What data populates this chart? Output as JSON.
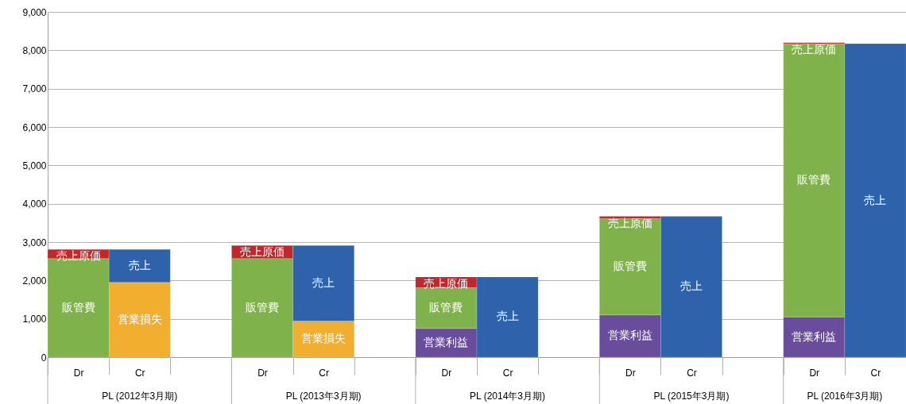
{
  "chart_data": {
    "type": "bar",
    "stacked": true,
    "categories": [
      "Dr",
      "Cr",
      null,
      "Dr",
      "Cr",
      null,
      "Dr",
      "Cr",
      null,
      "Dr",
      "Cr",
      null,
      "Dr",
      "Cr"
    ],
    "series": [
      {
        "name": "営業利益",
        "color": "#6a4c9c",
        "values": [
          null,
          null,
          null,
          null,
          null,
          null,
          750,
          null,
          null,
          1100,
          null,
          null,
          1050,
          null
        ]
      },
      {
        "name": "営業損失",
        "color": "#f2ae2e",
        "values": [
          null,
          1950,
          null,
          null,
          940,
          null,
          null,
          null,
          null,
          null,
          null,
          null,
          null,
          null
        ]
      },
      {
        "name": "販管費",
        "color": "#7fb24a",
        "values": [
          2570,
          null,
          null,
          2570,
          null,
          null,
          1060,
          null,
          null,
          2510,
          null,
          null,
          7120,
          null
        ]
      },
      {
        "name": "売上原価",
        "color": "#c0282e",
        "values": [
          240,
          null,
          null,
          340,
          null,
          null,
          280,
          null,
          null,
          60,
          null,
          null,
          30,
          null
        ]
      },
      {
        "name": "売上",
        "color": "#2e63ab",
        "values": [
          null,
          860,
          null,
          null,
          1970,
          null,
          null,
          2090,
          null,
          null,
          3670,
          null,
          null,
          8170
        ]
      }
    ],
    "ylim": [
      0,
      9000
    ],
    "yticks": [
      0,
      {
        "value": 1000,
        "label": "1,000"
      },
      {
        "value": 2000,
        "label": "2,000"
      },
      {
        "value": 3000,
        "label": "3,000"
      },
      {
        "value": 4000,
        "label": "4,000"
      },
      {
        "value": 5000,
        "label": "5,000"
      },
      {
        "value": 6000,
        "label": "6,000"
      },
      {
        "value": 7000,
        "label": "7,000"
      },
      {
        "value": 8000,
        "label": "8,000"
      },
      {
        "value": 9000,
        "label": "9,000"
      }
    ],
    "grid": "y",
    "annotations": [
      "PL (2012年3月期)",
      "PL (2013年3月期)",
      "PL (2014年3月期)",
      "PL (2015年3月期)",
      "PL (2016年3月期)"
    ]
  }
}
